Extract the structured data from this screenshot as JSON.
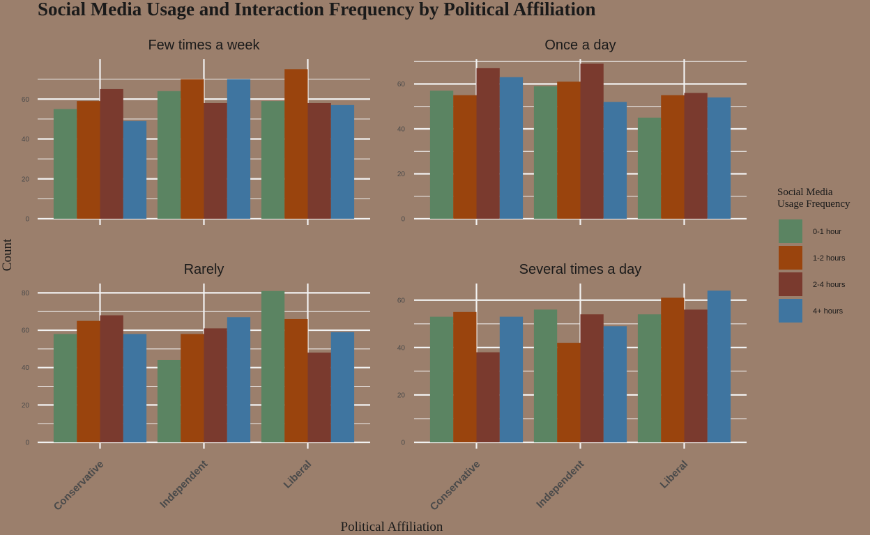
{
  "chart_data": {
    "type": "bar",
    "title": "Social Media Usage and Interaction Frequency by Political Affiliation",
    "xlabel": "Political Affiliation",
    "ylabel": "Count",
    "categories": [
      "Conservative",
      "Independent",
      "Liberal"
    ],
    "legend": {
      "title": [
        "Social Media",
        "Usage Frequency"
      ],
      "placement": "right",
      "items": [
        {
          "label": "0-1 hour",
          "color": "#5b8462"
        },
        {
          "label": "1-2 hours",
          "color": "#9a440d"
        },
        {
          "label": "2-4 hours",
          "color": "#7a3a2e"
        },
        {
          "label": "4+ hours",
          "color": "#3f75a0"
        }
      ]
    },
    "grid": true,
    "facets": [
      {
        "title": "Few times a week",
        "ylim": [
          0,
          80
        ],
        "yticks": [
          0,
          20,
          40,
          60
        ],
        "series": [
          {
            "name": "0-1 hour",
            "values": [
              55,
              64,
              59
            ]
          },
          {
            "name": "1-2 hours",
            "values": [
              59,
              70,
              75
            ]
          },
          {
            "name": "2-4 hours",
            "values": [
              65,
              58,
              58
            ]
          },
          {
            "name": "4+ hours",
            "values": [
              49,
              70,
              57
            ]
          }
        ]
      },
      {
        "title": "Once a day",
        "ylim": [
          0,
          71
        ],
        "yticks": [
          0,
          20,
          40,
          60
        ],
        "series": [
          {
            "name": "0-1 hour",
            "values": [
              57,
              59,
              45
            ]
          },
          {
            "name": "1-2 hours",
            "values": [
              55,
              61,
              55
            ]
          },
          {
            "name": "2-4 hours",
            "values": [
              67,
              69,
              56
            ]
          },
          {
            "name": "4+ hours",
            "values": [
              63,
              52,
              54
            ]
          }
        ]
      },
      {
        "title": "Rarely",
        "ylim": [
          0,
          85
        ],
        "yticks": [
          0,
          20,
          40,
          60,
          80
        ],
        "series": [
          {
            "name": "0-1 hour",
            "values": [
              58,
              44,
              81
            ]
          },
          {
            "name": "1-2 hours",
            "values": [
              65,
              58,
              66
            ]
          },
          {
            "name": "2-4 hours",
            "values": [
              68,
              61,
              48
            ]
          },
          {
            "name": "4+ hours",
            "values": [
              58,
              67,
              59
            ]
          }
        ]
      },
      {
        "title": "Several times a day",
        "ylim": [
          0,
          67
        ],
        "yticks": [
          0,
          20,
          40,
          60
        ],
        "series": [
          {
            "name": "0-1 hour",
            "values": [
              53,
              56,
              54
            ]
          },
          {
            "name": "1-2 hours",
            "values": [
              55,
              42,
              61
            ]
          },
          {
            "name": "2-4 hours",
            "values": [
              38,
              54,
              56
            ]
          },
          {
            "name": "4+ hours",
            "values": [
              53,
              49,
              64
            ]
          }
        ]
      }
    ]
  }
}
